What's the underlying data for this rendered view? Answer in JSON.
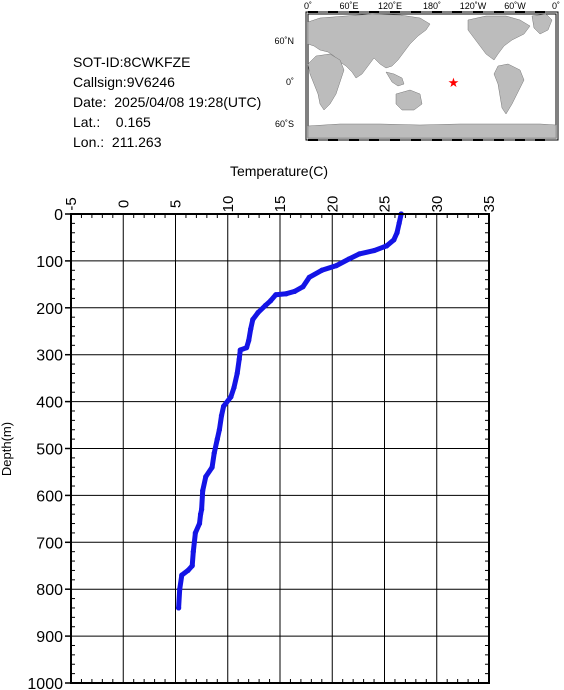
{
  "info": {
    "sot_id": "SOT-ID:8CWKFZE",
    "callsign": "Callsign:9V6246",
    "date": "Date:  2025/04/08 19:28(UTC)",
    "lat": "Lat.:    0.165",
    "lon": "Lon.:  211.263"
  },
  "map": {
    "lon_labels": [
      "0˚",
      "60˚E",
      "120˚E",
      "180˚",
      "120˚W",
      "60˚W",
      "0˚"
    ],
    "lat_labels": [
      "60˚N",
      "0˚",
      "60˚S"
    ],
    "marker": {
      "lat": 0.165,
      "lon": 211.263,
      "symbol": "★",
      "color": "#ff0000"
    },
    "ocean_color": "#ffffff",
    "land_color": "#bcbcbc"
  },
  "chart_data": {
    "type": "line",
    "title": "",
    "xlabel": "Temperature(C)",
    "ylabel": "Depth(m)",
    "xlim": [
      -5,
      35
    ],
    "ylim": [
      1000,
      0
    ],
    "x_ticks": [
      -5,
      0,
      5,
      10,
      15,
      20,
      25,
      30,
      35
    ],
    "y_ticks": [
      0,
      100,
      200,
      300,
      400,
      500,
      600,
      700,
      800,
      900,
      1000
    ],
    "x_tick_labels": [
      "-5",
      "0",
      "5",
      "10",
      "15",
      "20",
      "25",
      "30",
      "35"
    ],
    "y_tick_labels": [
      "0",
      "100",
      "200",
      "300",
      "400",
      "500",
      "600",
      "700",
      "800",
      "900",
      "1000"
    ],
    "grid": true,
    "line_color": "#1414e6",
    "series": [
      {
        "name": "",
        "x": [
          26.6,
          26.4,
          26.2,
          25.9,
          25.2,
          24.0,
          22.6,
          21.6,
          20.4,
          19.0,
          17.8,
          17.2,
          16.4,
          15.6,
          14.6,
          14.1,
          13.6,
          12.9,
          12.4,
          12.2,
          12.0,
          11.8,
          11.2,
          11.1,
          10.9,
          10.6,
          10.3,
          9.6,
          9.4,
          9.2,
          9.0,
          8.7,
          8.5,
          7.9,
          7.6,
          7.5,
          7.4,
          7.3,
          6.9,
          6.7,
          6.6,
          6.2,
          5.6,
          5.4,
          5.3
        ],
        "y": [
          0,
          20,
          40,
          55,
          68,
          78,
          85,
          96,
          110,
          120,
          135,
          155,
          165,
          170,
          172,
          185,
          195,
          210,
          225,
          245,
          270,
          285,
          290,
          310,
          340,
          370,
          390,
          410,
          430,
          460,
          480,
          510,
          540,
          560,
          590,
          630,
          640,
          660,
          680,
          720,
          750,
          760,
          770,
          800,
          840
        ]
      }
    ]
  }
}
